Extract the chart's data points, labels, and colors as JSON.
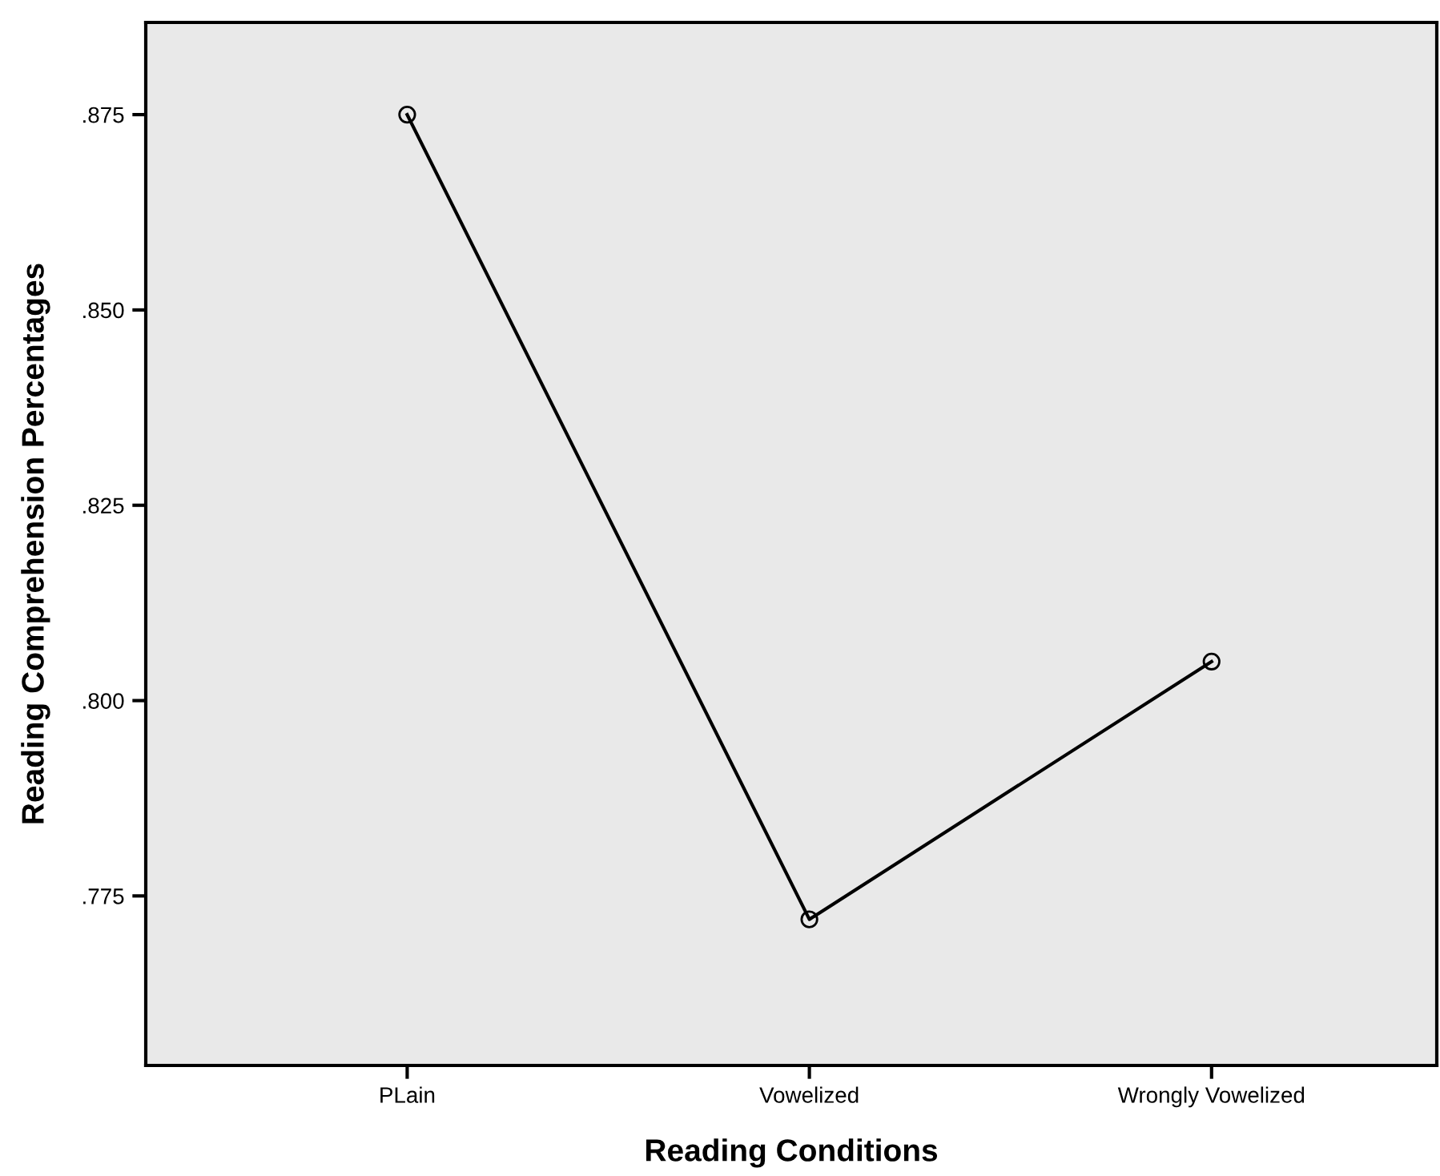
{
  "chart_data": {
    "type": "line",
    "xlabel": "Reading Conditions",
    "ylabel": "Reading Comprehension Percentages",
    "categories": [
      "PLain",
      "Vowelized",
      "Wrongly Vowelized"
    ],
    "series": [
      {
        "color": "#000000",
        "values": [
          0.875,
          0.772,
          0.805
        ]
      }
    ],
    "ylim": [
      0.7533,
      0.8868
    ],
    "yticks": [
      {
        "value": 0.775,
        "label": ".775"
      },
      {
        "value": 0.8,
        "label": ".800"
      },
      {
        "value": 0.825,
        "label": ".825"
      },
      {
        "value": 0.85,
        "label": ".850"
      },
      {
        "value": 0.875,
        "label": ".875"
      }
    ],
    "marker": "circle",
    "line_style": "solid",
    "grid": false,
    "legend": false
  }
}
